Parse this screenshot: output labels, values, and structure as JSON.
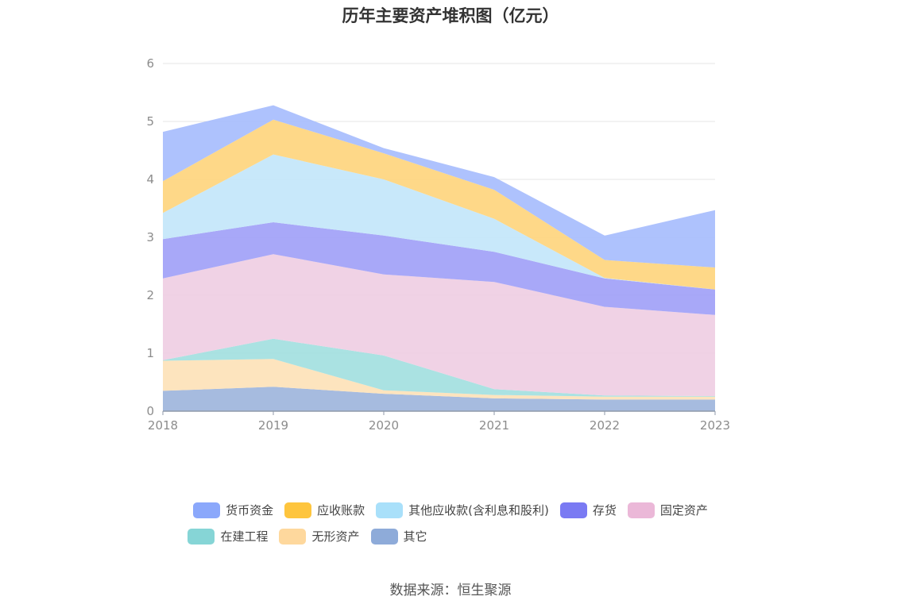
{
  "chart_data": {
    "type": "area",
    "stacked": true,
    "title": "历年主要资产堆积图（亿元）",
    "categories": [
      "2018",
      "2019",
      "2020",
      "2021",
      "2022",
      "2023"
    ],
    "ylim": [
      0,
      6
    ],
    "yticks": [
      "0",
      "1",
      "2",
      "3",
      "4",
      "5",
      "6"
    ],
    "grid": true,
    "legend_position": "bottom",
    "series": [
      {
        "name": "其它",
        "color": "#9eb5dc",
        "values": [
          0.35,
          0.42,
          0.3,
          0.22,
          0.2,
          0.2
        ]
      },
      {
        "name": "无形资产",
        "color": "#fde2b8",
        "values": [
          0.52,
          0.48,
          0.06,
          0.06,
          0.05,
          0.05
        ]
      },
      {
        "name": "在建工程",
        "color": "#a3e0df",
        "values": [
          0.01,
          0.35,
          0.6,
          0.1,
          0.02,
          0.01
        ]
      },
      {
        "name": "固定资产",
        "color": "#efcee3",
        "values": [
          1.41,
          1.46,
          1.4,
          1.85,
          1.53,
          1.4
        ]
      },
      {
        "name": "存货",
        "color": "#a1a1f7",
        "values": [
          0.68,
          0.55,
          0.67,
          0.52,
          0.49,
          0.44
        ]
      },
      {
        "name": "其他应收款(含利息和股利)",
        "color": "#c3e6fa",
        "values": [
          0.45,
          1.17,
          0.97,
          0.57,
          0.01,
          0.0
        ]
      },
      {
        "name": "应收账款",
        "color": "#fed57e",
        "values": [
          0.55,
          0.6,
          0.45,
          0.5,
          0.31,
          0.38
        ]
      },
      {
        "name": "货币资金",
        "color": "#a7bdfd",
        "values": [
          0.85,
          0.25,
          0.09,
          0.22,
          0.42,
          0.99
        ]
      }
    ]
  },
  "legend": {
    "row1": [
      {
        "label": "货币资金",
        "color": "#8ba8fb"
      },
      {
        "label": "应收账款",
        "color": "#fec53e"
      },
      {
        "label": "其他应收款(含利息和股利)",
        "color": "#a9e0fa"
      },
      {
        "label": "存货",
        "color": "#7a7af3"
      },
      {
        "label": "固定资产",
        "color": "#ebb8d8"
      }
    ],
    "row2": [
      {
        "label": "在建工程",
        "color": "#86d5d6"
      },
      {
        "label": "无形资产",
        "color": "#fed89d"
      },
      {
        "label": "其它",
        "color": "#8eabd9"
      }
    ]
  },
  "source": "数据来源：恒生聚源"
}
